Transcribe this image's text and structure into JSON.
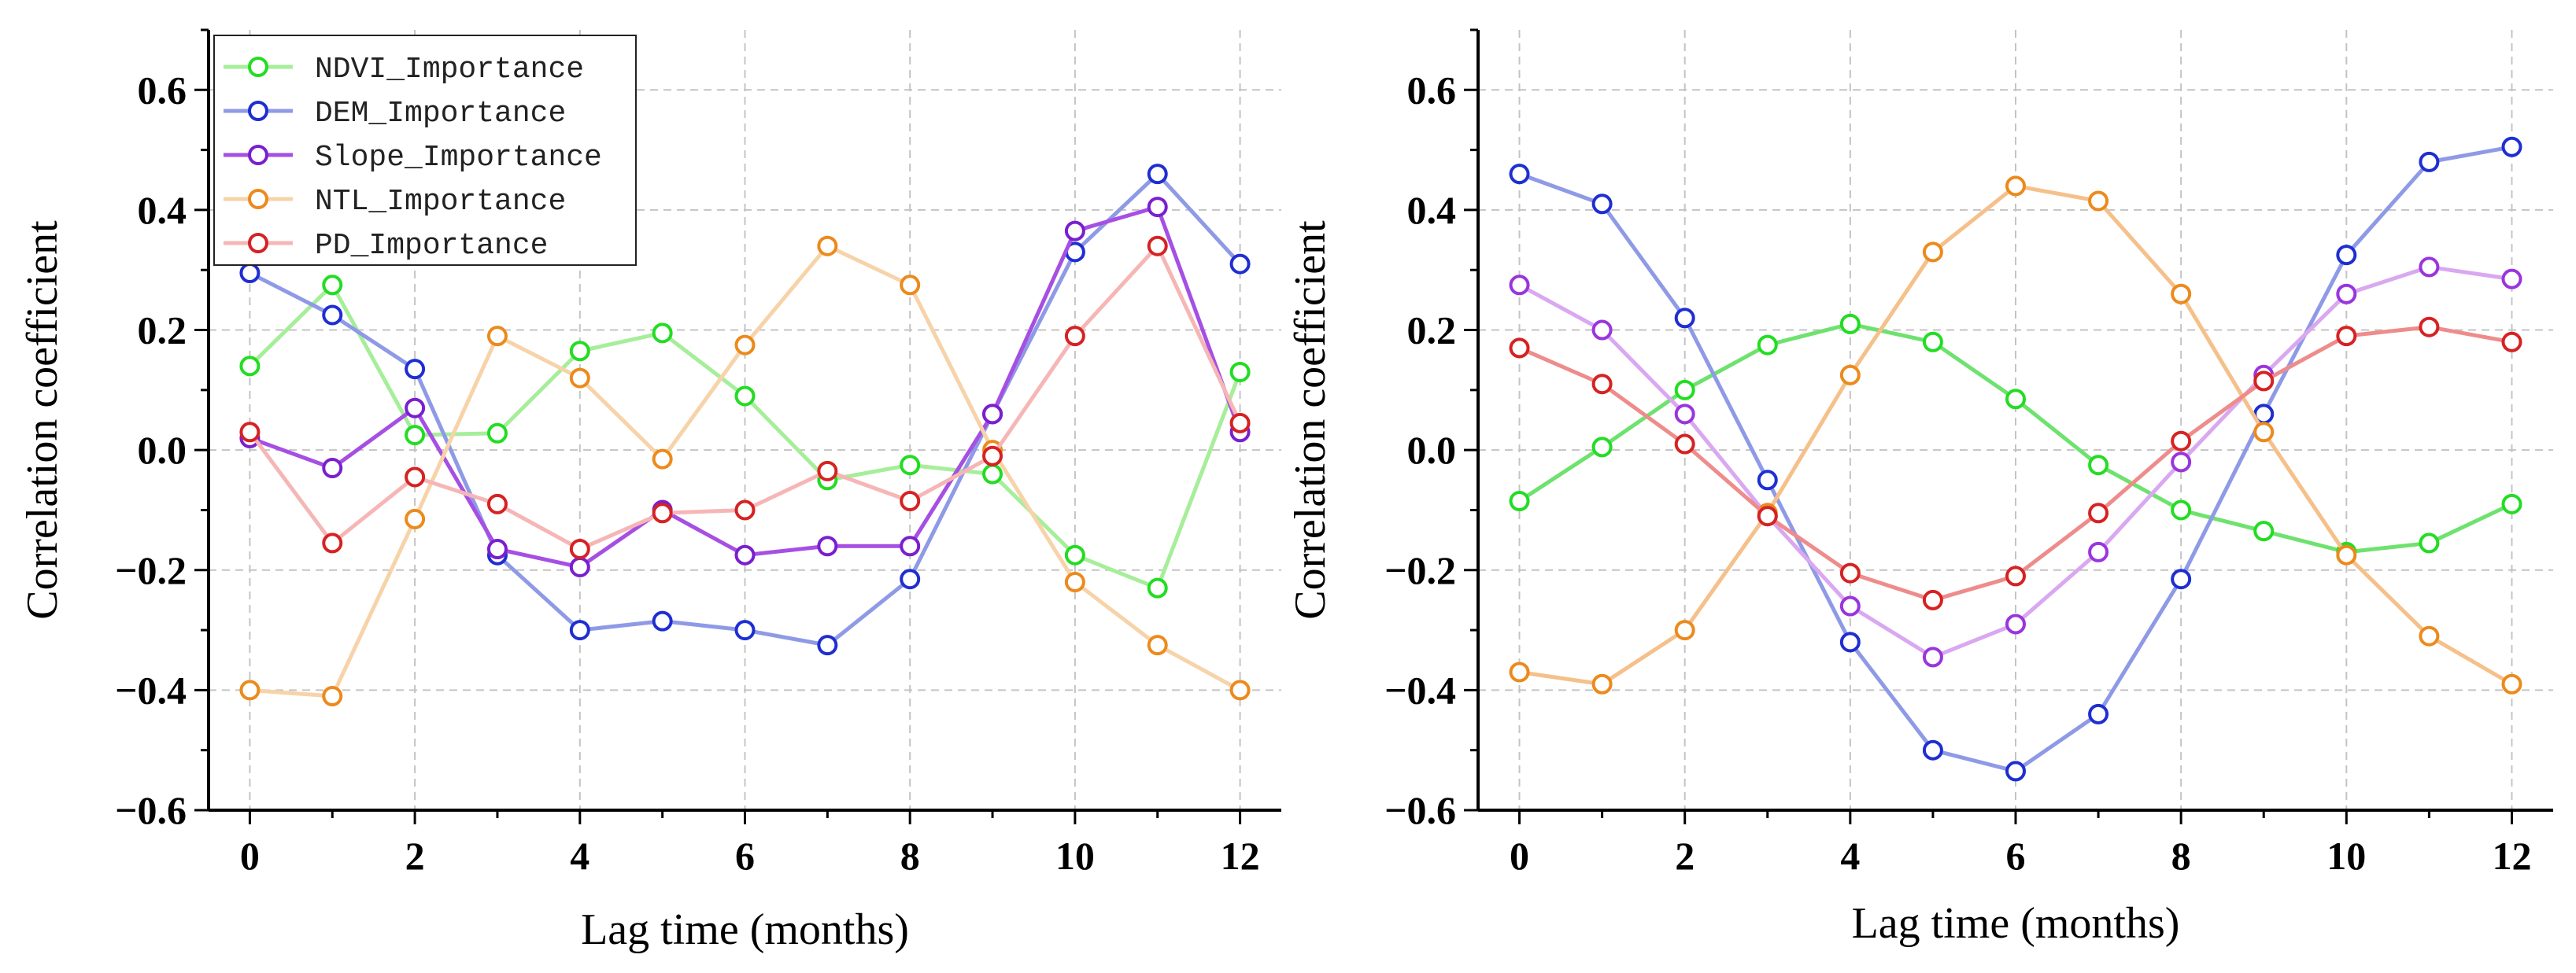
{
  "chart_data": [
    {
      "type": "line",
      "xlabel": "Lag time (months)",
      "ylabel": "Correlation coefficient",
      "x": [
        0,
        1,
        2,
        3,
        4,
        5,
        6,
        7,
        8,
        9,
        10,
        11,
        12
      ],
      "xlim": [
        -0.5,
        12.5
      ],
      "ylim": [
        -0.6,
        0.7
      ],
      "xticks": [
        0,
        2,
        4,
        6,
        8,
        10,
        12
      ],
      "yticks": [
        -0.6,
        -0.4,
        -0.2,
        0.0,
        0.2,
        0.4,
        0.6
      ],
      "ytick_labels": [
        "−0.6",
        "−0.4",
        "−0.2",
        "0.0",
        "0.2",
        "0.4",
        "0.6"
      ],
      "grid": true,
      "legend_position": "top-left",
      "series": [
        {
          "name": "NDVI_Importance",
          "line_color": "#a6ee9a",
          "marker_color": "#22dd22",
          "values": [
            0.14,
            0.275,
            0.025,
            0.028,
            0.165,
            0.195,
            0.09,
            -0.05,
            -0.025,
            -0.04,
            -0.175,
            -0.23,
            0.13
          ]
        },
        {
          "name": "DEM_Importance",
          "line_color": "#8f9ae6",
          "marker_color": "#1f2ed1",
          "values": [
            0.295,
            0.225,
            0.135,
            -0.175,
            -0.3,
            -0.285,
            -0.3,
            -0.325,
            -0.215,
            0.06,
            0.33,
            0.46,
            0.31
          ]
        },
        {
          "name": "Slope_Importance",
          "line_color": "#a64fe3",
          "marker_color": "#7a1fcf",
          "values": [
            0.02,
            -0.03,
            0.07,
            -0.165,
            -0.195,
            -0.1,
            -0.175,
            -0.16,
            -0.16,
            0.06,
            0.365,
            0.405,
            0.03
          ]
        },
        {
          "name": "NTL_Importance",
          "line_color": "#f7d3a9",
          "marker_color": "#ec8a1c",
          "values": [
            -0.4,
            -0.41,
            -0.115,
            0.19,
            0.12,
            -0.015,
            0.175,
            0.34,
            0.275,
            0.0,
            -0.22,
            -0.325,
            -0.4
          ]
        },
        {
          "name": "PD_Importance",
          "line_color": "#f6b6b6",
          "marker_color": "#d62222",
          "values": [
            0.03,
            -0.155,
            -0.045,
            -0.09,
            -0.165,
            -0.105,
            -0.1,
            -0.035,
            -0.085,
            -0.01,
            0.19,
            0.34,
            0.045
          ]
        }
      ]
    },
    {
      "type": "line",
      "xlabel": "Lag time (months)",
      "ylabel": "Correlation coefficient",
      "x": [
        0,
        1,
        2,
        3,
        4,
        5,
        6,
        7,
        8,
        9,
        10,
        11,
        12
      ],
      "xlim": [
        -0.5,
        12.5
      ],
      "ylim": [
        -0.6,
        0.7
      ],
      "xticks": [
        0,
        2,
        4,
        6,
        8,
        10,
        12
      ],
      "yticks": [
        -0.6,
        -0.4,
        -0.2,
        0.0,
        0.2,
        0.4,
        0.6
      ],
      "ytick_labels": [
        "−0.6",
        "−0.4",
        "−0.2",
        "0.0",
        "0.2",
        "0.4",
        "0.6"
      ],
      "grid": true,
      "series": [
        {
          "line_color": "#6ee26e",
          "marker_color": "#22dd22",
          "values": [
            -0.085,
            0.005,
            0.1,
            0.175,
            0.21,
            0.18,
            0.085,
            -0.025,
            -0.1,
            -0.135,
            -0.17,
            -0.155,
            -0.09
          ]
        },
        {
          "line_color": "#8f9ae6",
          "marker_color": "#1f2ed1",
          "values": [
            0.46,
            0.41,
            0.22,
            -0.05,
            -0.32,
            -0.5,
            -0.535,
            -0.44,
            -0.215,
            0.06,
            0.325,
            0.48,
            0.505
          ]
        },
        {
          "line_color": "#d9a8f0",
          "marker_color": "#9a35dd",
          "values": [
            0.275,
            0.2,
            0.06,
            -0.11,
            -0.26,
            -0.345,
            -0.29,
            -0.17,
            -0.02,
            0.125,
            0.26,
            0.305,
            0.285
          ]
        },
        {
          "line_color": "#f5c08a",
          "marker_color": "#ec8a1c",
          "values": [
            -0.37,
            -0.39,
            -0.3,
            -0.105,
            0.125,
            0.33,
            0.44,
            0.415,
            0.26,
            0.03,
            -0.175,
            -0.31,
            -0.39
          ]
        },
        {
          "line_color": "#ee8c8c",
          "marker_color": "#d62222",
          "values": [
            0.17,
            0.11,
            0.01,
            -0.11,
            -0.205,
            -0.25,
            -0.21,
            -0.105,
            0.015,
            0.115,
            0.19,
            0.205,
            0.18
          ]
        }
      ]
    }
  ]
}
